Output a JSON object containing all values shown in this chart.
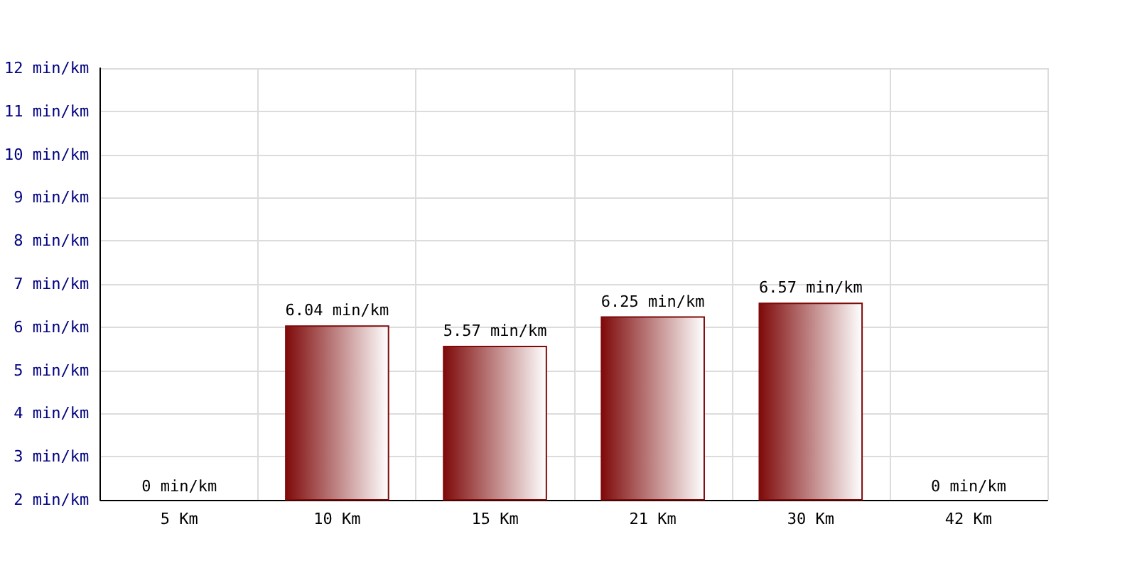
{
  "chart_data": {
    "type": "bar",
    "categories": [
      "5 Km",
      "10 Km",
      "15 Km",
      "21 Km",
      "30 Km",
      "42 Km"
    ],
    "values": [
      null,
      6.04,
      5.57,
      6.25,
      6.57,
      null
    ],
    "value_labels": [
      "0 min/km",
      "6.04 min/km",
      "5.57 min/km",
      "6.25 min/km",
      "6.57 min/km",
      "0 min/km"
    ],
    "color": "#7f0a0a",
    "ylim": [
      2,
      12
    ],
    "yticks": [
      {
        "value": 2,
        "label": "2 min/km"
      },
      {
        "value": 3,
        "label": "3 min/km"
      },
      {
        "value": 4,
        "label": "4 min/km"
      },
      {
        "value": 5,
        "label": "5 min/km"
      },
      {
        "value": 6,
        "label": "6 min/km"
      },
      {
        "value": 7,
        "label": "7 min/km"
      },
      {
        "value": 8,
        "label": "8 min/km"
      },
      {
        "value": 9,
        "label": "9 min/km"
      },
      {
        "value": 10,
        "label": "10 min/km"
      },
      {
        "value": 11,
        "label": "11 min/km"
      },
      {
        "value": 12,
        "label": "12 min/km"
      }
    ],
    "grid": true
  }
}
